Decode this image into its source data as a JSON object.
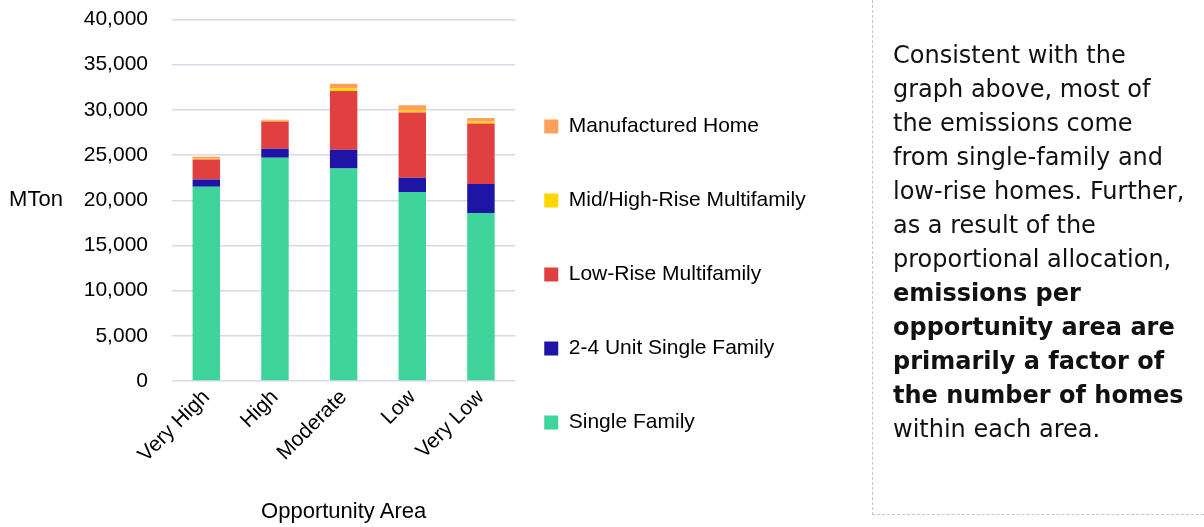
{
  "chart_data": {
    "type": "bar",
    "stacked": true,
    "categories": [
      "Very High",
      "High",
      "Moderate",
      "Low",
      "Very Low"
    ],
    "series": [
      {
        "name": "Single Family",
        "color": "#3ed49c",
        "values": [
          21500,
          24700,
          23500,
          20900,
          18600
        ]
      },
      {
        "name": "2-4 Unit Single Family",
        "color": "#1e14a6",
        "values": [
          800,
          1000,
          2100,
          1600,
          3200
        ]
      },
      {
        "name": "Low-Rise Multifamily",
        "color": "#e04040",
        "values": [
          2200,
          3000,
          6500,
          7200,
          6700
        ]
      },
      {
        "name": "Mid/High-Rise Multifamily",
        "color": "#ffd700",
        "values": [
          100,
          100,
          300,
          200,
          200
        ]
      },
      {
        "name": "Manufactured Home",
        "color": "#ffa05a",
        "values": [
          200,
          100,
          500,
          600,
          400
        ]
      }
    ],
    "xlabel": "Opportunity Area",
    "ylabel": "MTon",
    "ylim": [
      0,
      40000
    ],
    "yticks": [
      {
        "value": 0,
        "label": "0"
      },
      {
        "value": 5000,
        "label": "5,000"
      },
      {
        "value": 10000,
        "label": "10,000"
      },
      {
        "value": 15000,
        "label": "15,000"
      },
      {
        "value": 20000,
        "label": "20,000"
      },
      {
        "value": 25000,
        "label": "25,000"
      },
      {
        "value": 30000,
        "label": "30,000"
      },
      {
        "value": 35000,
        "label": "35,000"
      },
      {
        "value": 40000,
        "label": "40,000"
      }
    ],
    "grid": "y",
    "legend": "right",
    "annotations": [
      "Consistent with the graph above, most of the emissions come from single-family and low-rise homes. Further, as a result of the proportional allocation,",
      "emissions per opportunity area are primarily a factor of the number of homes",
      "within each area."
    ]
  }
}
